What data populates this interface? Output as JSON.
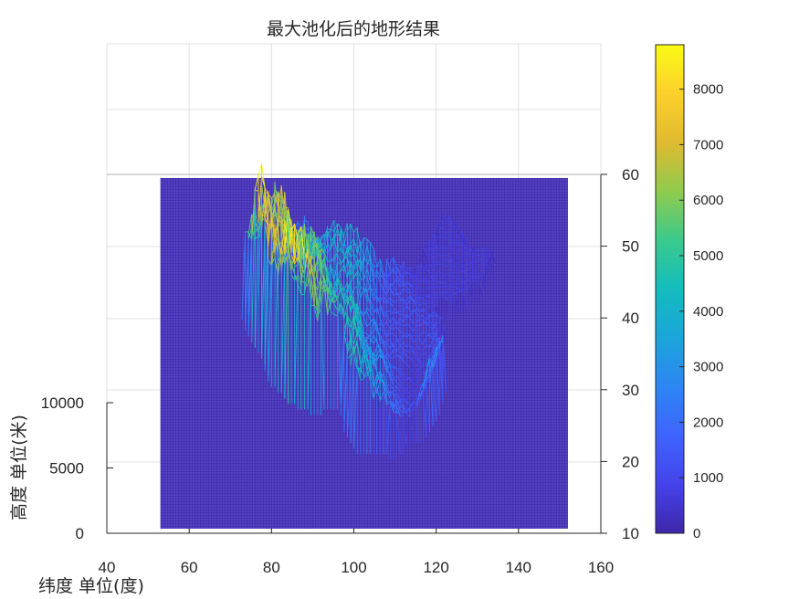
{
  "chart_data": {
    "type": "surface",
    "title": "最大池化后的地形结果",
    "xlabel": "纬度 单位(度)",
    "ylabel": "",
    "zlabel": "高度 单位(米)",
    "xlim": [
      40,
      160
    ],
    "ylim": [
      10,
      60
    ],
    "zlim": [
      0,
      10000
    ],
    "x_ticks": [
      "40",
      "60",
      "80",
      "100",
      "120",
      "140",
      "160"
    ],
    "y_ticks": [
      "10",
      "20",
      "30",
      "40",
      "50",
      "60"
    ],
    "z_ticks": [
      "0",
      "5000",
      "10000"
    ],
    "grid": true,
    "colormap": "parula",
    "colorbar": {
      "range": [
        0,
        8800
      ],
      "ticks": [
        "0",
        "1000",
        "2000",
        "3000",
        "4000",
        "5000",
        "6000",
        "7000",
        "8000"
      ]
    },
    "surface_extent": {
      "x": [
        53,
        152
      ],
      "y": [
        10,
        60
      ]
    },
    "elevation_profile": [
      {
        "lon": 75,
        "lat": 39,
        "elev": 5200
      },
      {
        "lon": 77,
        "lat": 36,
        "elev": 8200
      },
      {
        "lon": 80,
        "lat": 35,
        "elev": 6500
      },
      {
        "lon": 86,
        "lat": 28,
        "elev": 8800
      },
      {
        "lon": 88,
        "lat": 32,
        "elev": 5800
      },
      {
        "lon": 92,
        "lat": 30,
        "elev": 5600
      },
      {
        "lon": 96,
        "lat": 36,
        "elev": 4000
      },
      {
        "lon": 88,
        "lat": 45,
        "elev": 2500
      },
      {
        "lon": 100,
        "lat": 28,
        "elev": 4500
      },
      {
        "lon": 103,
        "lat": 30,
        "elev": 2500
      },
      {
        "lon": 110,
        "lat": 33,
        "elev": 1500
      },
      {
        "lon": 115,
        "lat": 28,
        "elev": 900
      },
      {
        "lon": 120,
        "lat": 45,
        "elev": 800
      },
      {
        "lon": 125,
        "lat": 48,
        "elev": 700
      },
      {
        "lon": 121,
        "lat": 24,
        "elev": 3500
      }
    ],
    "colors": {
      "base": "#3e26a8",
      "axis": "#262626",
      "grid": "#e0e0e0"
    }
  }
}
